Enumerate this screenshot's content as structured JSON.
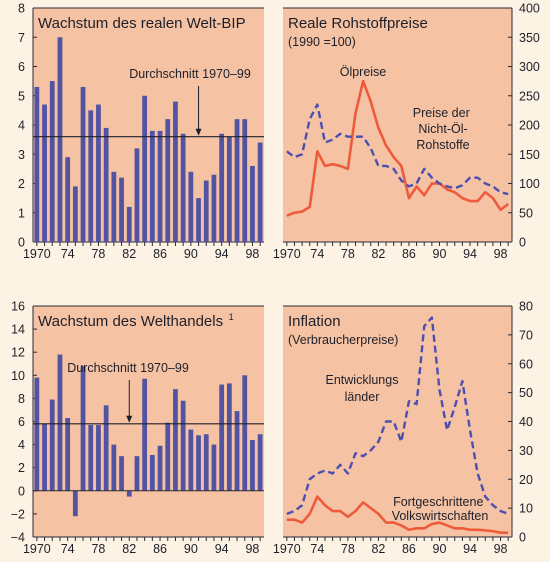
{
  "colors": {
    "page_background": "#fdf3e4",
    "panel_background": "#f5c3a3",
    "bar_fill": "#5253a2",
    "oil_line": "#ee5a3c",
    "dashed_line": "#4c4fb0",
    "average_line": "#1e1f2a"
  },
  "chart_data": [
    {
      "type": "bar",
      "title": "Wachstum des realen Welt-BIP",
      "x": [
        1970,
        1971,
        1972,
        1973,
        1974,
        1975,
        1976,
        1977,
        1978,
        1979,
        1980,
        1981,
        1982,
        1983,
        1984,
        1985,
        1986,
        1987,
        1988,
        1989,
        1990,
        1991,
        1992,
        1993,
        1994,
        1995,
        1996,
        1997,
        1998,
        1999
      ],
      "values": [
        5.3,
        4.7,
        5.5,
        7.0,
        2.9,
        1.9,
        5.3,
        4.5,
        4.7,
        3.9,
        2.4,
        2.2,
        1.2,
        3.2,
        5.0,
        3.8,
        3.8,
        4.2,
        4.8,
        3.7,
        2.4,
        1.5,
        2.1,
        2.3,
        3.7,
        3.6,
        4.2,
        4.2,
        2.6,
        3.4
      ],
      "ylim": [
        0,
        8
      ],
      "yticks": [
        "0",
        "1",
        "2",
        "3",
        "4",
        "5",
        "6",
        "7",
        "8"
      ],
      "xticks": [
        "1970",
        "74",
        "78",
        "82",
        "86",
        "90",
        "94",
        "98"
      ],
      "reference_line": {
        "value": 3.6,
        "label": "Durchschnitt 1970–99",
        "arrow_at_x": 1991
      },
      "y_axis_side": "left"
    },
    {
      "type": "line",
      "title": "Reale Rohstoffpreise",
      "subtitle": "(1990 =100)",
      "x": [
        1970,
        1971,
        1972,
        1973,
        1974,
        1975,
        1976,
        1977,
        1978,
        1979,
        1980,
        1981,
        1982,
        1983,
        1984,
        1985,
        1986,
        1987,
        1988,
        1989,
        1990,
        1991,
        1992,
        1993,
        1994,
        1995,
        1996,
        1997,
        1998,
        1999
      ],
      "series": [
        {
          "name": "Ölpreise",
          "style": "solid",
          "values": [
            45,
            50,
            52,
            60,
            155,
            130,
            133,
            130,
            125,
            220,
            275,
            240,
            195,
            165,
            145,
            130,
            75,
            95,
            80,
            100,
            100,
            90,
            85,
            75,
            70,
            70,
            85,
            75,
            55,
            65
          ]
        },
        {
          "name": "Preise der Nicht-Öl-Rohstoffe",
          "style": "dashed",
          "values": [
            155,
            145,
            150,
            210,
            235,
            170,
            175,
            185,
            180,
            180,
            180,
            160,
            130,
            130,
            125,
            105,
            95,
            100,
            125,
            110,
            100,
            95,
            92,
            97,
            110,
            110,
            100,
            95,
            85,
            82
          ]
        }
      ],
      "ylim": [
        0,
        400
      ],
      "yticks": [
        "0",
        "50",
        "100",
        "150",
        "200",
        "250",
        "300",
        "350",
        "400"
      ],
      "xticks": [
        "1970",
        "74",
        "78",
        "82",
        "86",
        "90",
        "94",
        "98"
      ],
      "y_axis_side": "right"
    },
    {
      "type": "bar",
      "title": "Wachstum des Welthandels",
      "title_footnote": "1",
      "x": [
        1970,
        1971,
        1972,
        1973,
        1974,
        1975,
        1976,
        1977,
        1978,
        1979,
        1980,
        1981,
        1982,
        1983,
        1984,
        1985,
        1986,
        1987,
        1988,
        1989,
        1990,
        1991,
        1992,
        1993,
        1994,
        1995,
        1996,
        1997,
        1998,
        1999
      ],
      "values": [
        9.8,
        5.8,
        7.9,
        11.8,
        6.3,
        -2.2,
        10.8,
        5.7,
        5.7,
        7.4,
        4.0,
        3.0,
        -0.5,
        3.0,
        9.7,
        3.1,
        3.9,
        5.9,
        8.8,
        7.8,
        5.3,
        4.8,
        4.9,
        4.0,
        9.2,
        9.3,
        6.9,
        10.0,
        4.4,
        4.9
      ],
      "ylim": [
        -4,
        16
      ],
      "yticks": [
        "−4",
        "−2",
        "0",
        "2",
        "4",
        "6",
        "8",
        "10",
        "12",
        "14",
        "16"
      ],
      "xticks": [
        "1970",
        "74",
        "78",
        "82",
        "86",
        "90",
        "94",
        "98"
      ],
      "reference_line": {
        "value": 5.8,
        "label": "Durchschnitt 1970–99",
        "arrow_at_x": 1982
      },
      "y_axis_side": "left"
    },
    {
      "type": "line",
      "title": "Inflation",
      "subtitle": "(Verbraucherpreise)",
      "x": [
        1970,
        1971,
        1972,
        1973,
        1974,
        1975,
        1976,
        1977,
        1978,
        1979,
        1980,
        1981,
        1982,
        1983,
        1984,
        1985,
        1986,
        1987,
        1988,
        1989,
        1990,
        1991,
        1992,
        1993,
        1994,
        1995,
        1996,
        1997,
        1998,
        1999
      ],
      "series": [
        {
          "name": "Entwicklungsländer",
          "style": "dashed",
          "values": [
            8,
            9,
            11,
            20,
            22,
            23,
            22,
            25,
            22,
            29,
            28,
            30,
            33,
            40,
            40,
            33,
            47,
            46,
            73,
            76,
            51,
            37,
            45,
            54,
            37,
            22,
            14,
            11,
            9,
            8
          ]
        },
        {
          "name": "Fortgeschrittene Volkswirtschaften",
          "style": "solid",
          "values": [
            6,
            6,
            5,
            8,
            14,
            11,
            9,
            9,
            7,
            9,
            12,
            10,
            8,
            5,
            5,
            4,
            2.5,
            3,
            3,
            4.5,
            5,
            4,
            3,
            3,
            2.5,
            2.5,
            2.3,
            2,
            1.5,
            1.5
          ]
        }
      ],
      "ylim": [
        0,
        80
      ],
      "yticks": [
        "0",
        "10",
        "20",
        "30",
        "40",
        "50",
        "60",
        "70",
        "80"
      ],
      "xticks": [
        "1970",
        "74",
        "78",
        "82",
        "86",
        "90",
        "94",
        "98"
      ],
      "y_axis_side": "right"
    }
  ]
}
